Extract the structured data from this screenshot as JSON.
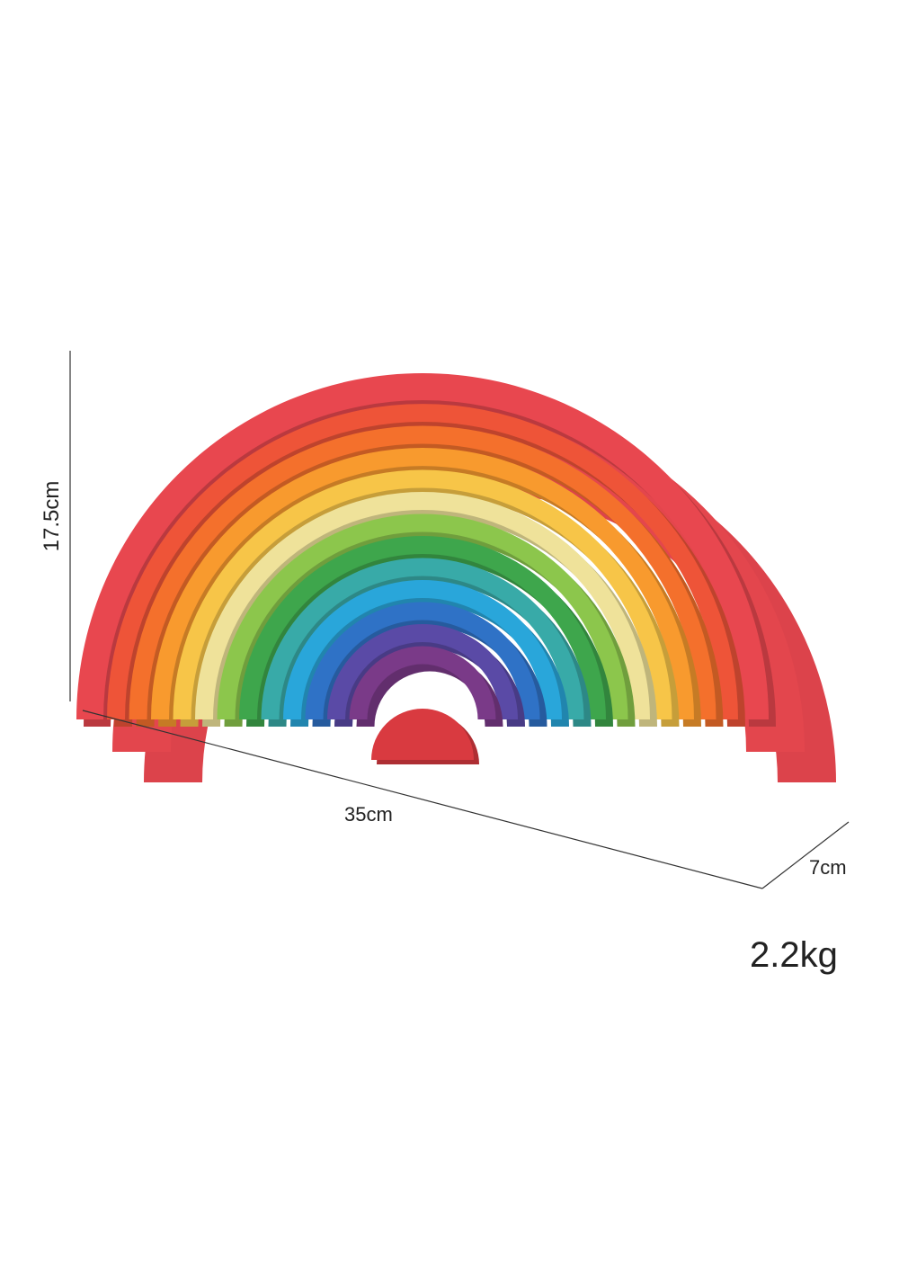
{
  "dimensions": {
    "height": "17.5cm",
    "width": "35cm",
    "depth": "7cm"
  },
  "weight": "2.2kg",
  "arch_colors": [
    "#e8474f",
    "#ee5438",
    "#f4702c",
    "#f89a2e",
    "#f7c548",
    "#efe29a",
    "#8cc64c",
    "#3ea64c",
    "#38aaa8",
    "#29a6da",
    "#2f72c6",
    "#5a4aa6",
    "#7a3a88",
    "#d93a40"
  ]
}
